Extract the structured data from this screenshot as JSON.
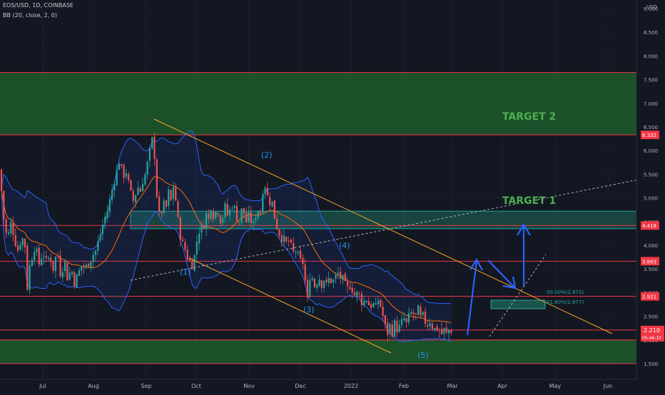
{
  "header": {
    "symbol_line": "EOS/USD, 1D, COINBASE",
    "indicator_line": "BB (20, close, 2, 0)"
  },
  "colors": {
    "background": "#131722",
    "up_candle": "#26a69a",
    "down_candle": "#ef5350",
    "bb_band": "#2962ff",
    "bb_basis": "#ff6d00",
    "zone_fill": "#1b5e20",
    "level_line": "#f23645",
    "channel_line": "#f5a623",
    "arrow": "#2962ff",
    "target_text": "#4caf50",
    "wave_label": "#2196f3"
  },
  "chart_data": {
    "type": "candlestick",
    "symbol": "EOS/USD",
    "timeframe": "1D",
    "exchange": "COINBASE",
    "indicator": "BB (20, close, 2, 0)",
    "y_axis": {
      "unit_label": "USD",
      "range": [
        1.35,
        9.0
      ],
      "ticks": [
        "9.000",
        "8.500",
        "8.000",
        "7.500",
        "7.000",
        "6.500",
        "6.000",
        "5.500",
        "5.000",
        "4.500",
        "4.000",
        "3.500",
        "3.000",
        "2.500",
        "2.000",
        "1.500"
      ]
    },
    "x_axis": {
      "ticks": [
        "Jul",
        "Aug",
        "Sep",
        "Oct",
        "Nov",
        "Dec",
        "2022",
        "Feb",
        "Mar",
        "Apr",
        "May",
        "Jun"
      ]
    },
    "price_path": [
      [
        0,
        5.6
      ],
      [
        4,
        4.7
      ],
      [
        10,
        4.1
      ],
      [
        16,
        4.5
      ],
      [
        20,
        4.2
      ],
      [
        25,
        3.9
      ],
      [
        30,
        4.2
      ],
      [
        35,
        4.0
      ],
      [
        38,
        3.1
      ],
      [
        42,
        3.6
      ],
      [
        48,
        4.0
      ],
      [
        55,
        3.6
      ],
      [
        60,
        3.9
      ],
      [
        65,
        3.6
      ],
      [
        70,
        3.8
      ],
      [
        75,
        3.5
      ],
      [
        80,
        3.9
      ],
      [
        85,
        3.4
      ],
      [
        90,
        3.7
      ],
      [
        95,
        3.3
      ],
      [
        100,
        3.5
      ],
      [
        105,
        3.2
      ],
      [
        110,
        3.4
      ],
      [
        115,
        3.6
      ],
      [
        120,
        3.5
      ],
      [
        125,
        3.7
      ],
      [
        130,
        3.8
      ],
      [
        135,
        3.9
      ],
      [
        140,
        4.2
      ],
      [
        145,
        4.5
      ],
      [
        150,
        4.7
      ],
      [
        155,
        5.0
      ],
      [
        160,
        5.4
      ],
      [
        165,
        5.6
      ],
      [
        168,
        5.9
      ],
      [
        172,
        5.3
      ],
      [
        175,
        5.7
      ],
      [
        178,
        5.5
      ],
      [
        182,
        5.1
      ],
      [
        188,
        4.9
      ],
      [
        192,
        5.3
      ],
      [
        196,
        5.1
      ],
      [
        200,
        5.4
      ],
      [
        204,
        5.5
      ],
      [
        208,
        5.8
      ],
      [
        212,
        6.1
      ],
      [
        215,
        6.35
      ],
      [
        218,
        5.5
      ],
      [
        221,
        4.8
      ],
      [
        224,
        4.5
      ],
      [
        228,
        4.9
      ],
      [
        232,
        4.7
      ],
      [
        236,
        5.1
      ],
      [
        240,
        4.9
      ],
      [
        244,
        5.4
      ],
      [
        248,
        4.6
      ],
      [
        252,
        4.3
      ],
      [
        256,
        4.0
      ],
      [
        260,
        3.9
      ],
      [
        264,
        3.7
      ],
      [
        268,
        3.6
      ],
      [
        272,
        3.7
      ],
      [
        276,
        4.1
      ],
      [
        280,
        4.4
      ],
      [
        284,
        4.3
      ],
      [
        288,
        4.7
      ],
      [
        292,
        4.5
      ],
      [
        296,
        4.9
      ],
      [
        300,
        4.6
      ],
      [
        305,
        4.8
      ],
      [
        310,
        4.5
      ],
      [
        315,
        4.8
      ],
      [
        320,
        4.6
      ],
      [
        325,
        4.9
      ],
      [
        330,
        4.7
      ],
      [
        335,
        4.5
      ],
      [
        340,
        4.8
      ],
      [
        345,
        4.5
      ],
      [
        350,
        4.6
      ],
      [
        355,
        4.4
      ],
      [
        360,
        4.8
      ],
      [
        365,
        4.7
      ],
      [
        368,
        5.2
      ],
      [
        372,
        5.3
      ],
      [
        376,
        4.9
      ],
      [
        380,
        5.0
      ],
      [
        385,
        4.6
      ],
      [
        390,
        4.3
      ],
      [
        395,
        4.2
      ],
      [
        400,
        4.0
      ],
      [
        405,
        4.1
      ],
      [
        410,
        3.8
      ],
      [
        415,
        3.9
      ],
      [
        420,
        3.6
      ],
      [
        424,
        3.7
      ],
      [
        428,
        3.2
      ],
      [
        431,
        2.8
      ],
      [
        434,
        3.4
      ],
      [
        438,
        3.3
      ],
      [
        442,
        3.1
      ],
      [
        446,
        3.4
      ],
      [
        450,
        3.2
      ],
      [
        454,
        3.3
      ],
      [
        458,
        3.1
      ],
      [
        462,
        3.35
      ],
      [
        466,
        3.2
      ],
      [
        470,
        3.3
      ],
      [
        474,
        3.4
      ],
      [
        478,
        3.3
      ],
      [
        482,
        3.2
      ],
      [
        486,
        3.0
      ],
      [
        490,
        3.2
      ],
      [
        494,
        3.1
      ],
      [
        498,
        2.9
      ],
      [
        502,
        3.0
      ],
      [
        506,
        2.85
      ],
      [
        510,
        2.8
      ],
      [
        514,
        2.9
      ],
      [
        518,
        2.7
      ],
      [
        522,
        2.8
      ],
      [
        526,
        2.6
      ],
      [
        530,
        2.85
      ],
      [
        534,
        2.7
      ],
      [
        538,
        2.4
      ],
      [
        542,
        2.1
      ],
      [
        546,
        2.3
      ],
      [
        550,
        2.2
      ],
      [
        554,
        2.35
      ],
      [
        558,
        2.2
      ],
      [
        562,
        2.3
      ],
      [
        566,
        2.45
      ],
      [
        570,
        2.3
      ],
      [
        574,
        2.5
      ],
      [
        578,
        2.6
      ],
      [
        582,
        2.45
      ],
      [
        586,
        2.6
      ],
      [
        590,
        2.4
      ],
      [
        594,
        2.5
      ],
      [
        598,
        2.3
      ],
      [
        602,
        2.45
      ],
      [
        606,
        2.3
      ],
      [
        610,
        2.2
      ],
      [
        614,
        2.3
      ],
      [
        618,
        2.1
      ],
      [
        622,
        2.2
      ],
      [
        626,
        2.1
      ],
      [
        630,
        2.25
      ],
      [
        634,
        2.21
      ]
    ],
    "levels": [
      "6.332",
      "4.418",
      "3.663",
      "2.921",
      "2.210"
    ],
    "zones": [
      "green demand/target zones"
    ],
    "fib_levels": [
      {
        "label": "50.00%(2.872)",
        "value": 2.872
      },
      {
        "label": "61.80%(2.677)",
        "value": 2.677
      }
    ],
    "annotations": {
      "target1": "TARGET 1",
      "target2": "TARGET 2",
      "waves": [
        "(1)",
        "(2)",
        "(3)",
        "(4)",
        "(5)"
      ]
    },
    "current_price_label": "2.210",
    "countdown_label": "05:46:10"
  }
}
